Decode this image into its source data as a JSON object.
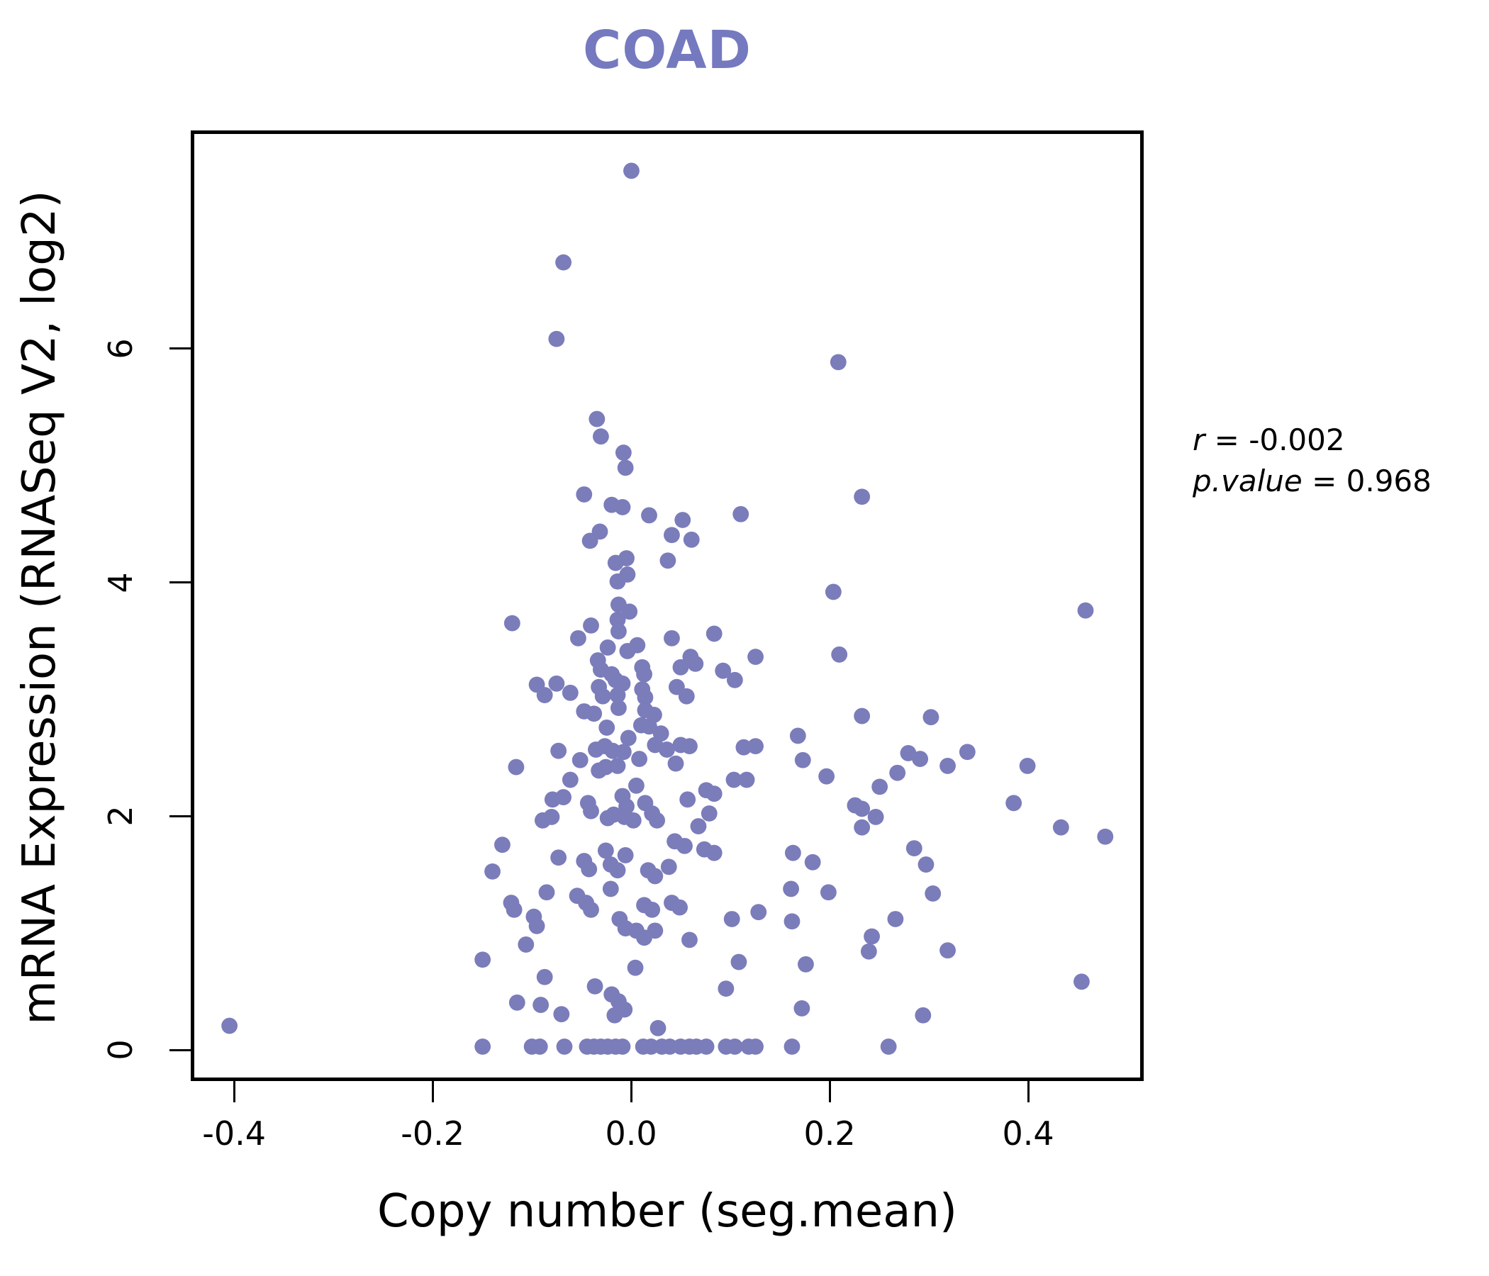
{
  "title": {
    "text": "COAD",
    "color": "#7579BF"
  },
  "x_axis": {
    "label": "Copy number (seg.mean)",
    "ticks": [
      -0.4,
      -0.2,
      0.0,
      0.2,
      0.4
    ],
    "tick_labels": [
      "-0.4",
      "-0.2",
      "0.0",
      "0.2",
      "0.4"
    ],
    "range": [
      -0.4437,
      0.5164
    ]
  },
  "y_axis": {
    "label": "mRNA Expression (RNASeq V2, log2)",
    "ticks": [
      0,
      2,
      4,
      6
    ],
    "tick_labels": [
      "0",
      "2",
      "4",
      "6"
    ],
    "range": [
      -0.266,
      7.867
    ]
  },
  "stats": {
    "r_label": "r",
    "eq": " = ",
    "r_value": "-0.002",
    "p_label": "p.value",
    "p_value": "0.968"
  },
  "chart_data": {
    "type": "scatter",
    "title": "COAD",
    "xlabel": "Copy number (seg.mean)",
    "ylabel": "mRNA Expression (RNASeq V2, log2)",
    "xlim": [
      -0.4437,
      0.5164
    ],
    "ylim": [
      -0.266,
      7.867
    ],
    "grid": false,
    "legend": "none",
    "point_color": "#7B7CBA",
    "point_radius": 11.5,
    "annotation": {
      "r": -0.002,
      "p_value": 0.968
    },
    "series": [
      {
        "name": "samples",
        "points": [
          [
            0.0,
            7.55
          ],
          [
            -0.069,
            6.76
          ],
          [
            -0.076,
            6.1
          ],
          [
            0.21,
            5.9
          ],
          [
            -0.035,
            5.41
          ],
          [
            -0.031,
            5.26
          ],
          [
            -0.008,
            5.12
          ],
          [
            -0.006,
            4.99
          ],
          [
            -0.048,
            4.76
          ],
          [
            0.234,
            4.74
          ],
          [
            -0.02,
            4.67
          ],
          [
            -0.009,
            4.65
          ],
          [
            0.018,
            4.58
          ],
          [
            0.052,
            4.54
          ],
          [
            0.111,
            4.59
          ],
          [
            -0.032,
            4.44
          ],
          [
            -0.042,
            4.36
          ],
          [
            0.041,
            4.41
          ],
          [
            0.061,
            4.37
          ],
          [
            0.037,
            4.19
          ],
          [
            -0.016,
            4.17
          ],
          [
            -0.005,
            4.21
          ],
          [
            -0.004,
            4.07
          ],
          [
            -0.014,
            4.01
          ],
          [
            0.205,
            3.92
          ],
          [
            -0.013,
            3.81
          ],
          [
            -0.002,
            3.75
          ],
          [
            0.461,
            3.76
          ],
          [
            -0.014,
            3.68
          ],
          [
            -0.041,
            3.63
          ],
          [
            -0.121,
            3.65
          ],
          [
            -0.013,
            3.58
          ],
          [
            -0.054,
            3.52
          ],
          [
            0.041,
            3.52
          ],
          [
            0.084,
            3.56
          ],
          [
            0.006,
            3.46
          ],
          [
            -0.024,
            3.44
          ],
          [
            -0.004,
            3.41
          ],
          [
            0.211,
            3.38
          ],
          [
            0.126,
            3.36
          ],
          [
            0.06,
            3.36
          ],
          [
            -0.034,
            3.33
          ],
          [
            -0.031,
            3.25
          ],
          [
            -0.02,
            3.21
          ],
          [
            0.011,
            3.27
          ],
          [
            0.013,
            3.21
          ],
          [
            0.05,
            3.27
          ],
          [
            0.065,
            3.3
          ],
          [
            0.093,
            3.24
          ],
          [
            0.105,
            3.16
          ],
          [
            -0.096,
            3.12
          ],
          [
            -0.088,
            3.03
          ],
          [
            -0.076,
            3.13
          ],
          [
            -0.062,
            3.05
          ],
          [
            -0.033,
            3.1
          ],
          [
            -0.029,
            3.02
          ],
          [
            -0.016,
            3.16
          ],
          [
            -0.009,
            3.13
          ],
          [
            -0.014,
            3.03
          ],
          [
            0.011,
            3.08
          ],
          [
            0.014,
            3.01
          ],
          [
            0.046,
            3.1
          ],
          [
            0.056,
            3.02
          ],
          [
            -0.048,
            2.89
          ],
          [
            -0.038,
            2.87
          ],
          [
            -0.013,
            2.92
          ],
          [
            0.014,
            2.9
          ],
          [
            0.023,
            2.86
          ],
          [
            0.234,
            2.85
          ],
          [
            0.304,
            2.84
          ],
          [
            -0.025,
            2.75
          ],
          [
            0.01,
            2.77
          ],
          [
            -0.003,
            2.66
          ],
          [
            0.03,
            2.7
          ],
          [
            0.018,
            2.76
          ],
          [
            0.169,
            2.68
          ],
          [
            -0.074,
            2.55
          ],
          [
            -0.036,
            2.56
          ],
          [
            -0.027,
            2.59
          ],
          [
            -0.019,
            2.55
          ],
          [
            -0.008,
            2.54
          ],
          [
            0.024,
            2.6
          ],
          [
            0.036,
            2.56
          ],
          [
            0.05,
            2.6
          ],
          [
            0.059,
            2.59
          ],
          [
            0.114,
            2.58
          ],
          [
            0.126,
            2.59
          ],
          [
            0.341,
            2.54
          ],
          [
            0.281,
            2.53
          ],
          [
            0.293,
            2.48
          ],
          [
            0.321,
            2.42
          ],
          [
            0.402,
            2.42
          ],
          [
            0.174,
            2.47
          ],
          [
            0.27,
            2.36
          ],
          [
            -0.117,
            2.41
          ],
          [
            -0.062,
            2.3
          ],
          [
            -0.033,
            2.38
          ],
          [
            -0.026,
            2.41
          ],
          [
            -0.014,
            2.42
          ],
          [
            0.008,
            2.48
          ],
          [
            0.045,
            2.44
          ],
          [
            -0.052,
            2.47
          ],
          [
            0.005,
            2.25
          ],
          [
            0.198,
            2.33
          ],
          [
            0.252,
            2.24
          ],
          [
            0.014,
            2.1
          ],
          [
            -0.009,
            2.16
          ],
          [
            -0.005,
            2.07
          ],
          [
            -0.08,
            2.13
          ],
          [
            -0.069,
            2.15
          ],
          [
            -0.09,
            1.95
          ],
          [
            -0.081,
            1.98
          ],
          [
            -0.044,
            2.1
          ],
          [
            -0.041,
            2.03
          ],
          [
            -0.024,
            1.97
          ],
          [
            -0.018,
            2.0
          ],
          [
            -0.007,
            1.98
          ],
          [
            0.002,
            1.95
          ],
          [
            0.021,
            2.01
          ],
          [
            0.026,
            1.95
          ],
          [
            0.057,
            2.13
          ],
          [
            0.076,
            2.21
          ],
          [
            0.084,
            2.18
          ],
          [
            0.104,
            2.3
          ],
          [
            0.117,
            2.3
          ],
          [
            0.079,
            2.01
          ],
          [
            0.068,
            1.9
          ],
          [
            0.227,
            2.08
          ],
          [
            0.234,
            2.05
          ],
          [
            0.248,
            1.98
          ],
          [
            0.234,
            1.89
          ],
          [
            0.388,
            2.1
          ],
          [
            0.436,
            1.89
          ],
          [
            0.481,
            1.81
          ],
          [
            0.044,
            1.77
          ],
          [
            0.054,
            1.73
          ],
          [
            0.074,
            1.7
          ],
          [
            0.084,
            1.67
          ],
          [
            -0.131,
            1.74
          ],
          [
            -0.074,
            1.63
          ],
          [
            -0.048,
            1.6
          ],
          [
            -0.043,
            1.53
          ],
          [
            -0.026,
            1.69
          ],
          [
            -0.021,
            1.57
          ],
          [
            -0.014,
            1.52
          ],
          [
            -0.006,
            1.65
          ],
          [
            0.017,
            1.52
          ],
          [
            0.024,
            1.47
          ],
          [
            0.038,
            1.55
          ],
          [
            -0.141,
            1.51
          ],
          [
            0.287,
            1.71
          ],
          [
            0.299,
            1.57
          ],
          [
            0.184,
            1.59
          ],
          [
            0.164,
            1.67
          ],
          [
            0.2,
            1.33
          ],
          [
            0.162,
            1.36
          ],
          [
            0.306,
            1.32
          ],
          [
            -0.122,
            1.24
          ],
          [
            -0.119,
            1.18
          ],
          [
            -0.099,
            1.12
          ],
          [
            -0.096,
            1.04
          ],
          [
            -0.107,
            0.88
          ],
          [
            -0.086,
            1.33
          ],
          [
            -0.055,
            1.3
          ],
          [
            -0.046,
            1.24
          ],
          [
            -0.041,
            1.18
          ],
          [
            -0.021,
            1.36
          ],
          [
            -0.012,
            1.1
          ],
          [
            -0.006,
            1.02
          ],
          [
            0.005,
            1.0
          ],
          [
            0.013,
            0.94
          ],
          [
            0.024,
            1.0
          ],
          [
            0.013,
            1.22
          ],
          [
            0.021,
            1.18
          ],
          [
            0.041,
            1.24
          ],
          [
            0.049,
            1.2
          ],
          [
            0.059,
            0.92
          ],
          [
            0.102,
            1.1
          ],
          [
            0.109,
            0.73
          ],
          [
            0.129,
            1.16
          ],
          [
            0.268,
            1.1
          ],
          [
            0.163,
            1.08
          ],
          [
            0.244,
            0.95
          ],
          [
            0.241,
            0.82
          ],
          [
            0.321,
            0.83
          ],
          [
            -0.151,
            0.75
          ],
          [
            0.177,
            0.71
          ],
          [
            -0.088,
            0.6
          ],
          [
            -0.037,
            0.52
          ],
          [
            -0.02,
            0.45
          ],
          [
            -0.013,
            0.39
          ],
          [
            -0.007,
            0.32
          ],
          [
            -0.017,
            0.27
          ],
          [
            0.004,
            0.68
          ],
          [
            0.027,
            0.16
          ],
          [
            -0.116,
            0.38
          ],
          [
            -0.092,
            0.36
          ],
          [
            -0.071,
            0.28
          ],
          [
            0.096,
            0.5
          ],
          [
            0.457,
            0.56
          ],
          [
            0.173,
            0.33
          ],
          [
            0.296,
            0.27
          ],
          [
            -0.408,
            0.18
          ],
          [
            -0.151,
            0
          ],
          [
            -0.101,
            0
          ],
          [
            -0.093,
            0
          ],
          [
            -0.068,
            0
          ],
          [
            -0.045,
            0
          ],
          [
            -0.038,
            0
          ],
          [
            -0.031,
            0
          ],
          [
            -0.024,
            0
          ],
          [
            -0.016,
            0
          ],
          [
            -0.009,
            0
          ],
          [
            0.012,
            0
          ],
          [
            0.02,
            0
          ],
          [
            0.031,
            0
          ],
          [
            0.039,
            0
          ],
          [
            0.05,
            0
          ],
          [
            0.059,
            0
          ],
          [
            0.066,
            0
          ],
          [
            0.076,
            0
          ],
          [
            0.096,
            0
          ],
          [
            0.105,
            0
          ],
          [
            0.119,
            0
          ],
          [
            0.126,
            0
          ],
          [
            0.163,
            0
          ],
          [
            0.261,
            0
          ]
        ]
      }
    ]
  }
}
